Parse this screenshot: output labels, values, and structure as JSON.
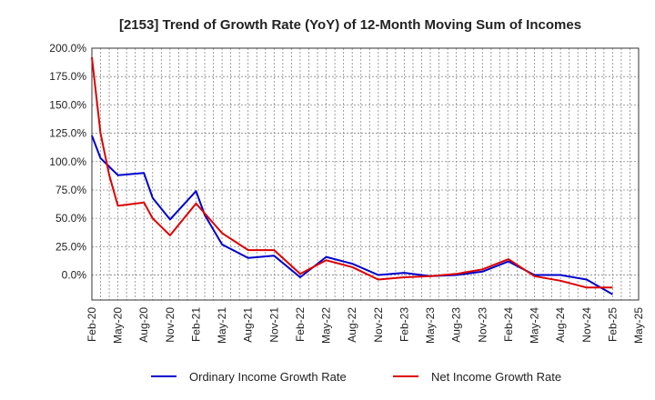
{
  "chart_data": {
    "type": "line",
    "title": "[2153]  Trend of Growth Rate (YoY) of 12-Month Moving Sum of Incomes",
    "xlabel": "",
    "ylabel": "",
    "ylim": [
      -22,
      200
    ],
    "yticks": [
      0,
      25,
      50,
      75,
      100,
      125,
      150,
      175,
      200
    ],
    "ytick_labels": [
      "0.0%",
      "25.0%",
      "50.0%",
      "75.0%",
      "100.0%",
      "125.0%",
      "150.0%",
      "175.0%",
      "200.0%"
    ],
    "x_tick_labels": [
      "Feb-20",
      "May-20",
      "Aug-20",
      "Nov-20",
      "Feb-21",
      "May-21",
      "Aug-21",
      "Nov-21",
      "Feb-22",
      "May-22",
      "Aug-22",
      "Nov-22",
      "Feb-23",
      "May-23",
      "Aug-23",
      "Nov-23",
      "Feb-24",
      "May-24",
      "Aug-24",
      "Nov-24",
      "Feb-25",
      "May-25"
    ],
    "x_tick_months": [
      0,
      3,
      6,
      9,
      12,
      15,
      18,
      21,
      24,
      27,
      30,
      33,
      36,
      39,
      42,
      45,
      48,
      51,
      54,
      57,
      60,
      63
    ],
    "x_range_months": [
      0,
      63
    ],
    "grid": true,
    "legend_position": "bottom",
    "series": [
      {
        "name": "Ordinary Income Growth Rate",
        "color": "#0000cc",
        "points": [
          [
            0,
            123
          ],
          [
            1,
            103
          ],
          [
            3,
            88
          ],
          [
            6,
            90
          ],
          [
            7,
            68
          ],
          [
            9,
            49
          ],
          [
            12,
            74
          ],
          [
            13,
            53
          ],
          [
            15,
            27
          ],
          [
            18,
            15
          ],
          [
            21,
            17
          ],
          [
            24,
            -2
          ],
          [
            27,
            16
          ],
          [
            30,
            10
          ],
          [
            33,
            0
          ],
          [
            36,
            2
          ],
          [
            39,
            -1
          ],
          [
            42,
            0
          ],
          [
            45,
            3
          ],
          [
            48,
            12
          ],
          [
            51,
            0
          ],
          [
            54,
            0
          ],
          [
            57,
            -4
          ],
          [
            60,
            -17
          ]
        ]
      },
      {
        "name": "Net Income Growth Rate",
        "color": "#dd0000",
        "points": [
          [
            0,
            192
          ],
          [
            1,
            125
          ],
          [
            2,
            88
          ],
          [
            3,
            61
          ],
          [
            6,
            64
          ],
          [
            7,
            50
          ],
          [
            9,
            35
          ],
          [
            12,
            63
          ],
          [
            15,
            37
          ],
          [
            18,
            22
          ],
          [
            21,
            22
          ],
          [
            24,
            1
          ],
          [
            27,
            13
          ],
          [
            30,
            7
          ],
          [
            33,
            -4
          ],
          [
            36,
            -2
          ],
          [
            39,
            -1
          ],
          [
            42,
            1
          ],
          [
            45,
            5
          ],
          [
            48,
            14
          ],
          [
            51,
            -1
          ],
          [
            54,
            -5
          ],
          [
            57,
            -11
          ],
          [
            60,
            -11
          ]
        ]
      }
    ]
  }
}
